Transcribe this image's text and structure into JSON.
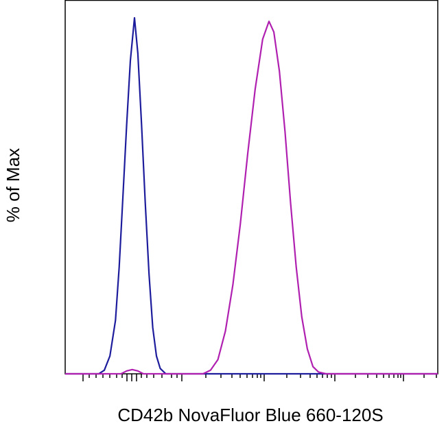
{
  "chart_data": {
    "type": "line",
    "y_label": "% of Max",
    "x_label": "CD42b NovaFluor Blue 660-120S",
    "xlim": [
      0,
      100
    ],
    "ylim": [
      0,
      105
    ],
    "series": [
      {
        "color": "#1c1c9c",
        "x": [
          0,
          9,
          10.5,
          12,
          13.5,
          14.5,
          15.5,
          16.5,
          17.5,
          18.6,
          19.5,
          20.5,
          21.5,
          22.5,
          23.5,
          24.5,
          25.5,
          27,
          100
        ],
        "values": [
          0,
          0,
          1,
          5,
          15,
          30,
          50,
          70,
          88,
          100,
          90,
          70,
          48,
          28,
          13,
          5,
          1.5,
          0,
          0
        ]
      },
      {
        "color": "#b020b0",
        "x": [
          0,
          15,
          16.5,
          18,
          19.5,
          21,
          37,
          39,
          41,
          43,
          45,
          47,
          49,
          51,
          53,
          54.7,
          56,
          57.5,
          59,
          60.5,
          62,
          63.5,
          65,
          66.5,
          68,
          70,
          100
        ],
        "values": [
          0,
          0,
          0.8,
          1.2,
          0.8,
          0,
          0,
          1,
          4,
          12,
          25,
          42,
          62,
          80,
          94,
          99,
          96,
          85,
          68,
          48,
          30,
          16,
          7,
          2,
          0.5,
          0,
          0
        ]
      }
    ]
  }
}
